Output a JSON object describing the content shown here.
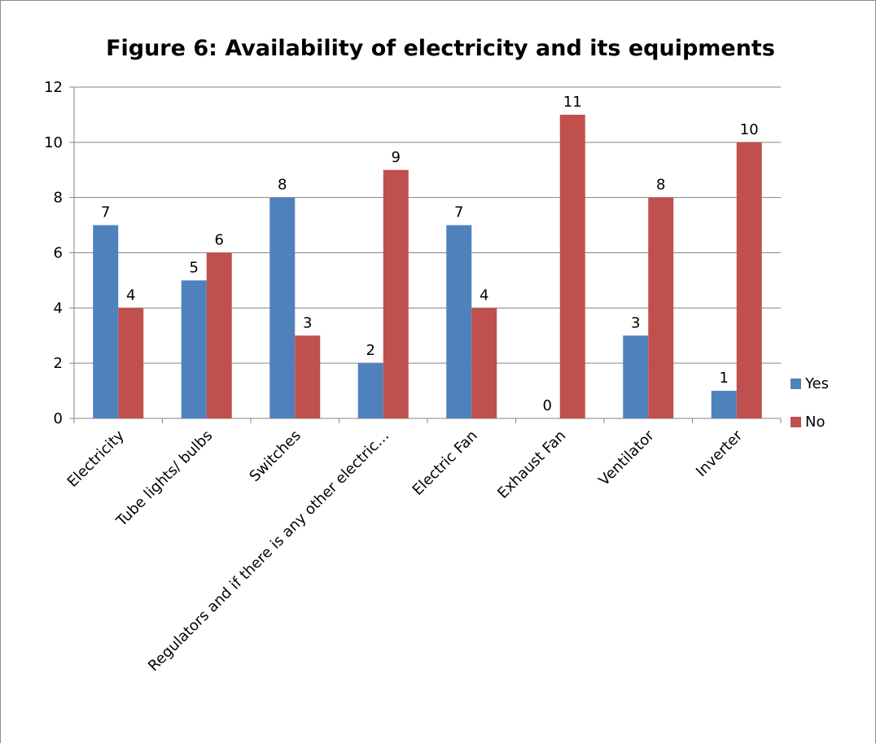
{
  "chart_data": {
    "type": "bar",
    "title": "Figure 6: Availability of electricity and its equipments",
    "xlabel": "",
    "ylabel": "",
    "categories": [
      "Electricity",
      "Tube lights/ bulbs",
      "Switches",
      "Regulators and if there is any other electric…",
      "Electric Fan",
      "Exhaust Fan",
      "Ventilator",
      "Inverter"
    ],
    "series": [
      {
        "name": "Yes",
        "color": "#4f81bd",
        "values": [
          7,
          5,
          8,
          2,
          7,
          0,
          3,
          1
        ]
      },
      {
        "name": "No",
        "color": "#c0504d",
        "values": [
          4,
          6,
          3,
          9,
          4,
          11,
          8,
          10
        ]
      }
    ],
    "ylim": [
      0,
      12
    ],
    "yticks": [
      0,
      2,
      4,
      6,
      8,
      10,
      12
    ],
    "grid": true,
    "data_labels": true,
    "legend_position": "right"
  }
}
